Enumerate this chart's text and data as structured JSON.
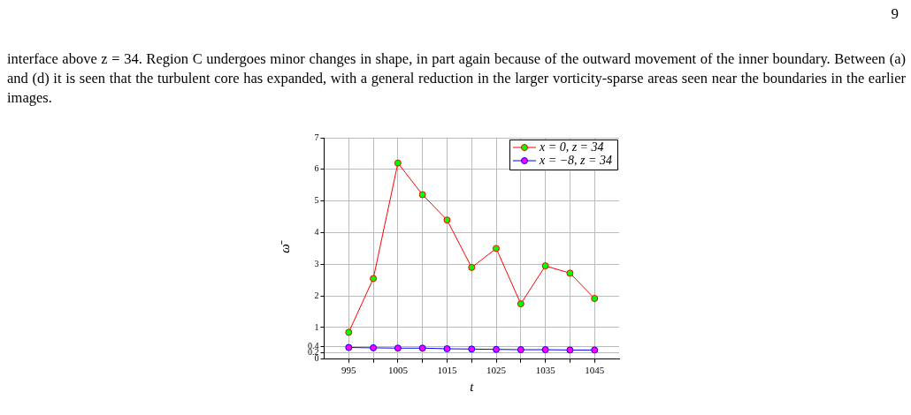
{
  "chart_data": {
    "type": "line",
    "xlabel": "t",
    "ylabel": "ω̄",
    "annotations": [
      "9",
      "interface above z = 34. Region C undergoes minor changes in shape, in part again because of the outward movement of the inner boundary. Between (a) and (d) it is seen that the turbulent core has expanded, with a general reduction in the larger vorticity-sparse areas seen near the boundaries in the earlier images."
    ],
    "x": [
      995,
      1000,
      1005,
      1010,
      1015,
      1020,
      1025,
      1030,
      1035,
      1040,
      1045
    ],
    "series": [
      {
        "name": "x = 0, z = 34",
        "color": "#ff0000",
        "colors": [
          "#00ff00",
          "#00ff00",
          "#00ff00",
          "#00ff00",
          "#00ff00",
          "#00ff00",
          "#00ff00",
          "#00ff00",
          "#00ff00",
          "#00ff00",
          "#00ff00"
        ],
        "values": [
          0.85,
          2.55,
          6.2,
          5.2,
          4.4,
          2.9,
          3.5,
          1.75,
          2.95,
          2.72,
          1.92
        ]
      },
      {
        "name": "x = −8, z = 34",
        "color": "#0000ff",
        "colors": [
          "#ff00ff",
          "#ff00ff",
          "#ff00ff",
          "#ff00ff",
          "#ff00ff",
          "#ff00ff",
          "#ff00ff",
          "#ff00ff",
          "#ff00ff",
          "#ff00ff",
          "#ff00ff"
        ],
        "values": [
          0.37,
          0.36,
          0.35,
          0.35,
          0.33,
          0.32,
          0.31,
          0.3,
          0.3,
          0.29,
          0.29
        ]
      }
    ],
    "xlim": [
      990,
      1050
    ],
    "xticks": [
      995,
      {
        "value": 1000,
        "label": null
      },
      1005,
      {
        "value": 1010,
        "label": null
      },
      1015,
      {
        "value": 1020,
        "label": null
      },
      1025,
      {
        "value": 1030,
        "label": null
      },
      1035,
      {
        "value": 1040,
        "label": null
      },
      1045
    ],
    "ylim": [
      0,
      7
    ],
    "yticks": [
      0,
      0.2,
      0.4,
      1,
      2,
      3,
      4,
      5,
      6,
      7
    ],
    "grid": true,
    "legend": "top right",
    "marker": "circle",
    "line_style": "solid"
  }
}
